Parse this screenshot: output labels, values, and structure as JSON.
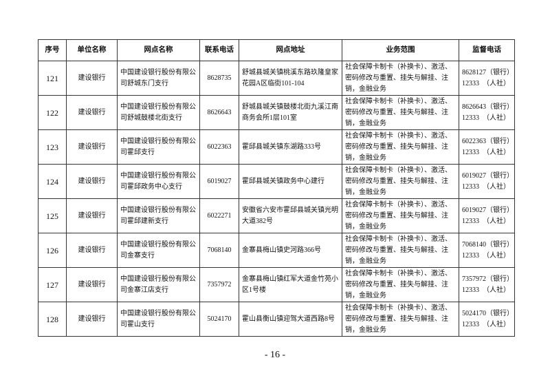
{
  "table": {
    "headers": [
      "序号",
      "单位名称",
      "网点名称",
      "联系电话",
      "网点地址",
      "业务范围",
      "监督电话"
    ],
    "rows": [
      {
        "no": "121",
        "unit": "建设银行",
        "branch": "中国建设银行股份有限公司舒城东门支行",
        "phone": "8628735",
        "address": "舒城县城关镇桃溪东路玖隆皇家花园A区临街101-104",
        "scope": "社会保障卡制卡（补换卡）、激活、密码修改与重置、挂失与解挂、注销，金融业务",
        "sup_bank": "8628127（银行）",
        "sup_hr": "12333　（人社）"
      },
      {
        "no": "122",
        "unit": "建设银行",
        "branch": "中国建设银行股份有限公司舒城鼓楼北街支行",
        "phone": "8626643",
        "address": "舒城县城关镇鼓楼北街九溪江南商务会所1层101室",
        "scope": "社会保障卡制卡（补换卡）、激活、密码修改与重置、挂失与解挂、注销，金融业务",
        "sup_bank": "8626643（银行）",
        "sup_hr": "12333　（人社）"
      },
      {
        "no": "123",
        "unit": "建设银行",
        "branch": "中国建设银行股份有限公司霍邱支行",
        "phone": "6022363",
        "address": "霍邱县城关镇东湖路333号",
        "scope": "社会保障卡制卡（补换卡）、激活、密码修改与重置、挂失与解挂、注销，金融业务",
        "sup_bank": "6022363（银行）",
        "sup_hr": "12333　（人社）"
      },
      {
        "no": "124",
        "unit": "建设银行",
        "branch": "中国建设银行股份有限公司霍邱政务中心支行",
        "phone": "6019027",
        "address": "霍邱县城关镇政务中心建行",
        "scope": "社会保障卡制卡（补换卡）、激活、密码修改与重置、挂失与解挂、注销，金融业务",
        "sup_bank": "6019027（银行）",
        "sup_hr": "12333　（人社）"
      },
      {
        "no": "125",
        "unit": "建设银行",
        "branch": "中国建设银行股份有限公司霍邱建新支行",
        "phone": "6022271",
        "address": "安徽省六安市霍邱县城关镇光明大道382号",
        "scope": "社会保障卡制卡（补换卡）、激活、密码修改与重置、挂失与解挂、注销，金融业务",
        "sup_bank": "6019027（银行）",
        "sup_hr": "12333　（人社）"
      },
      {
        "no": "126",
        "unit": "建设银行",
        "branch": "中国建设银行股份有限公司金寨支行",
        "phone": "7068140",
        "address": "金寨县梅山镇史河路366号",
        "scope": "社会保障卡制卡（补换卡）、激活、密码修改与重置、挂失与解挂、注销，金融业务",
        "sup_bank": "7068140（银行）",
        "sup_hr": "12333　（人社）"
      },
      {
        "no": "127",
        "unit": "建设银行",
        "branch": "中国建设银行股份有限公司金寨江店支行",
        "phone": "7357972",
        "address": "金寨县梅山镇红军大道金竹苑小区1号楼",
        "scope": "社会保障卡制卡（补换卡）、激活、密码修改与重置、挂失与解挂、注销，金融业务",
        "sup_bank": "7357972（银行）",
        "sup_hr": "12333　（人社）"
      },
      {
        "no": "128",
        "unit": "建设银行",
        "branch": "中国建设银行股份有限公司霍山支行",
        "phone": "5024170",
        "address": "霍山县衡山镇迎驾大道西路8号",
        "scope": "社会保障卡制卡（补换卡）、激活、密码修改与重置、挂失与解挂、注销，金融业务",
        "sup_bank": "5024170（银行）",
        "sup_hr": "12333　（人社）"
      }
    ]
  },
  "page_number": "- 16 -"
}
